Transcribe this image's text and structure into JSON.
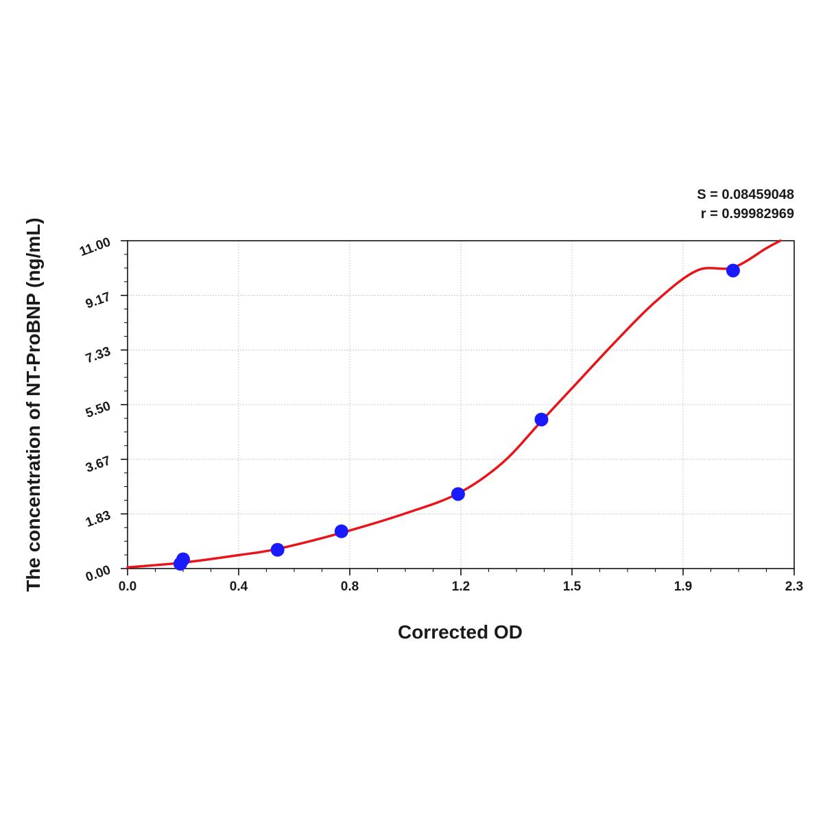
{
  "chart_data": {
    "type": "scatter",
    "xlabel": "Corrected OD",
    "ylabel": "The concentration of NT-ProBNP (ng/mL)",
    "annotations": {
      "s_text": "S = 0.08459048",
      "r_text": "r = 0.99982969"
    },
    "x_ticks": [
      "0.0",
      "0.4",
      "0.8",
      "1.2",
      "1.5",
      "1.9",
      "2.3"
    ],
    "y_ticks": [
      "0.00",
      "1.83",
      "3.67",
      "5.50",
      "7.33",
      "9.17",
      "11.00"
    ],
    "xlim": [
      0,
      2.4
    ],
    "ylim": [
      0,
      11
    ],
    "grid": true,
    "series": [
      {
        "kind": "points",
        "color": "#1a1aff",
        "x": [
          0.19,
          0.2,
          0.54,
          0.77,
          1.19,
          1.49,
          2.18
        ],
        "y": [
          0.16,
          0.31,
          0.63,
          1.25,
          2.5,
          5.0,
          10.0
        ]
      },
      {
        "kind": "fit-curve",
        "color": "#e8141a",
        "x": [
          0.0,
          0.2,
          0.4,
          0.54,
          0.77,
          1.0,
          1.19,
          1.35,
          1.49,
          1.6,
          1.75,
          1.9,
          2.05,
          2.18,
          2.3,
          2.35
        ],
        "y": [
          0.04,
          0.2,
          0.45,
          0.66,
          1.2,
          1.85,
          2.52,
          3.55,
          4.95,
          6.05,
          7.55,
          8.95,
          10.0,
          10.1,
          10.75,
          11.0
        ]
      }
    ]
  }
}
